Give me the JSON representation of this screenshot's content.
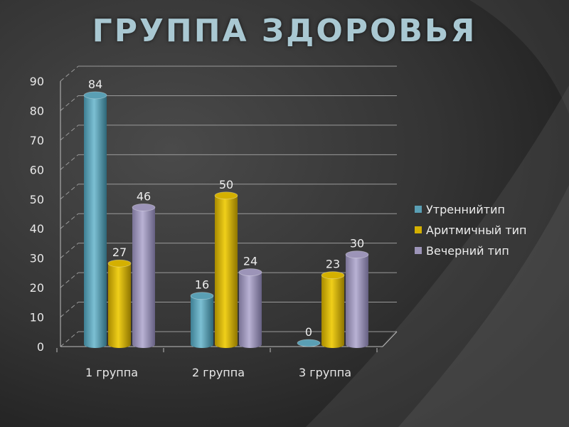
{
  "title": "ГРУППА ЗДОРОВЬЯ",
  "chart_data": {
    "type": "bar",
    "categories": [
      "1 группа",
      "2 группа",
      "3 группа"
    ],
    "series": [
      {
        "name": "Утреннийтип",
        "values": [
          84,
          16,
          0
        ],
        "color": "#5a9fb4"
      },
      {
        "name": "Аритмичный тип",
        "values": [
          27,
          50,
          23
        ],
        "color": "#d4b000"
      },
      {
        "name": "Вечерний тип",
        "values": [
          46,
          24,
          30
        ],
        "color": "#9c94b8"
      }
    ],
    "ylim": [
      0,
      90
    ],
    "yticks": [
      0,
      10,
      20,
      30,
      40,
      50,
      60,
      70,
      80,
      90
    ],
    "grid": true,
    "legend_position": "right",
    "data_labels": true
  }
}
